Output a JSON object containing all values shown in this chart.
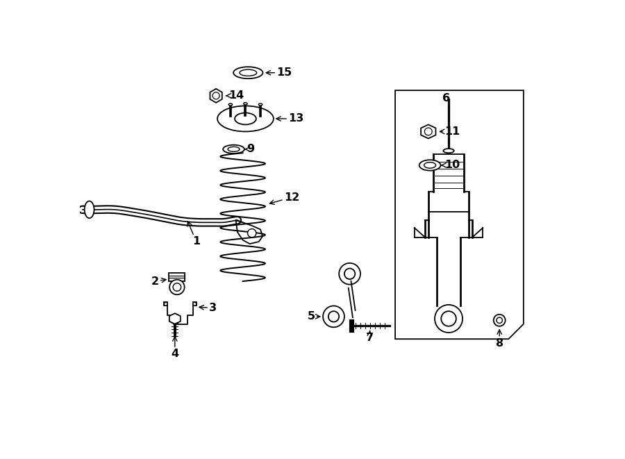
{
  "bg_color": "#ffffff",
  "line_color": "#000000",
  "lw": 1.3,
  "fig_width": 9.0,
  "fig_height": 6.61,
  "dpi": 100
}
